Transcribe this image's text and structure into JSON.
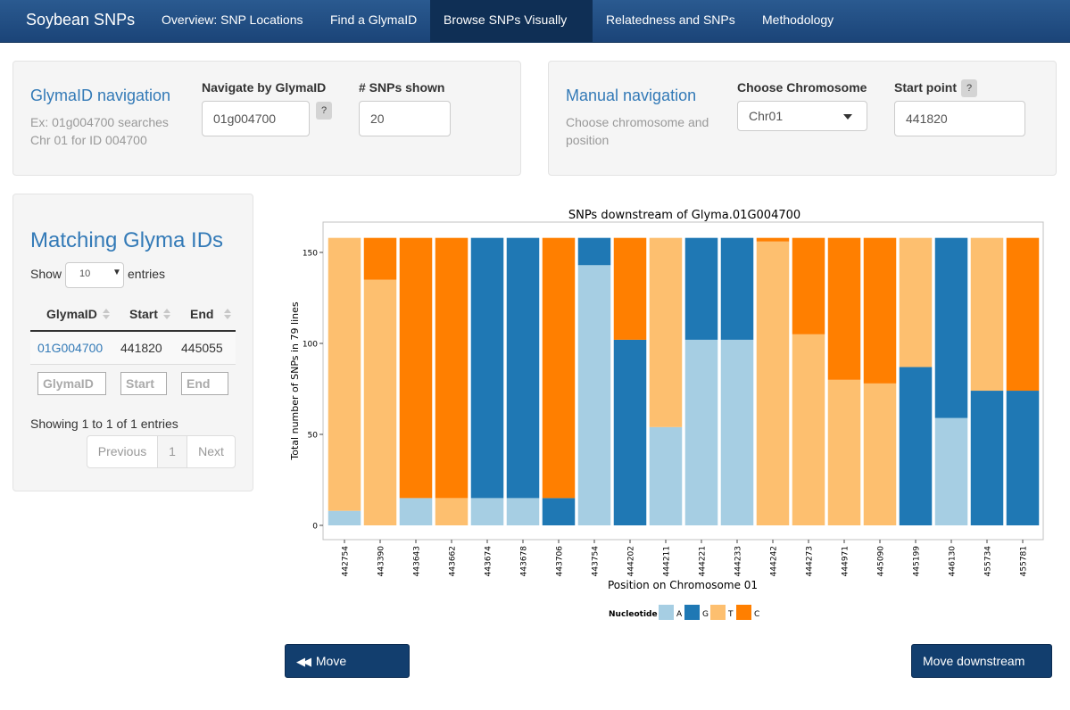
{
  "navbar": {
    "brand": "Soybean SNPs",
    "items": [
      {
        "label": "Overview: SNP Locations"
      },
      {
        "label": "Find a GlymaID"
      },
      {
        "label": "Browse SNPs Visually"
      },
      {
        "label": "Relatedness and SNPs"
      },
      {
        "label": "Methodology"
      }
    ]
  },
  "glyma_nav": {
    "title": "GlymaID navigation",
    "help_line1": "Ex: 01g004700 searches",
    "help_line2": "Chr 01 for ID 004700",
    "id_label": "Navigate by GlymaID",
    "id_value": "01g004700",
    "qmark": "?",
    "snps_label": "# SNPs shown",
    "snps_value": "20"
  },
  "manual_nav": {
    "title": "Manual navigation",
    "help_line1": "Choose chromosome and",
    "help_line2": "position",
    "chrom_label": "Choose Chromosome",
    "chrom_value": "Chr01",
    "start_label": "Start point",
    "qmark": "?",
    "start_value": "441820"
  },
  "matches": {
    "title": "Matching Glyma IDs",
    "show_label": "Show",
    "entries_value": "10",
    "entries_label": "entries",
    "columns": [
      "GlymaID",
      "Start",
      "End"
    ],
    "rows": [
      [
        "01G004700",
        "441820",
        "445055"
      ]
    ],
    "filters": [
      "GlymaID",
      "Start",
      "End"
    ],
    "info": "Showing 1 to 1 of 1 entries",
    "pager": {
      "previous": "Previous",
      "page": "1",
      "next": "Next"
    }
  },
  "buttons": {
    "upstream": "Move upstream",
    "downstream": "Move downstream"
  },
  "chart_data": {
    "type": "bar",
    "stacked": true,
    "title": "SNPs downstream of Glyma.01G004700",
    "xlabel": "Position on  Chromosome 01",
    "ylabel": "Total number of SNPs in 79 lines",
    "ylim": [
      0,
      158
    ],
    "yticks": [
      0,
      50,
      100,
      150
    ],
    "categories": [
      "442754",
      "443390",
      "443643",
      "443662",
      "443674",
      "443678",
      "443706",
      "443754",
      "444202",
      "444211",
      "444221",
      "444233",
      "444242",
      "444273",
      "444971",
      "445090",
      "445199",
      "446130",
      "455734",
      "455781"
    ],
    "series": [
      {
        "name": "A",
        "color": "#a6cee3",
        "values": [
          8,
          0,
          15,
          0,
          15,
          15,
          0,
          143,
          0,
          54,
          102,
          102,
          0,
          0,
          0,
          0,
          0,
          59,
          0,
          0
        ]
      },
      {
        "name": "G",
        "color": "#1f78b4",
        "values": [
          0,
          0,
          0,
          0,
          143,
          143,
          15,
          15,
          102,
          0,
          56,
          56,
          0,
          0,
          0,
          0,
          87,
          99,
          74,
          74
        ]
      },
      {
        "name": "T",
        "color": "#fdbf6f",
        "values": [
          150,
          135,
          0,
          15,
          0,
          0,
          0,
          0,
          0,
          104,
          0,
          0,
          156,
          105,
          80,
          78,
          71,
          0,
          84,
          0
        ]
      },
      {
        "name": "C",
        "color": "#ff7f00",
        "values": [
          0,
          23,
          143,
          143,
          0,
          0,
          143,
          0,
          56,
          0,
          0,
          0,
          2,
          53,
          78,
          80,
          0,
          0,
          0,
          84
        ]
      }
    ],
    "legend_title": "Nucleotide",
    "legend_position": "bottom"
  }
}
